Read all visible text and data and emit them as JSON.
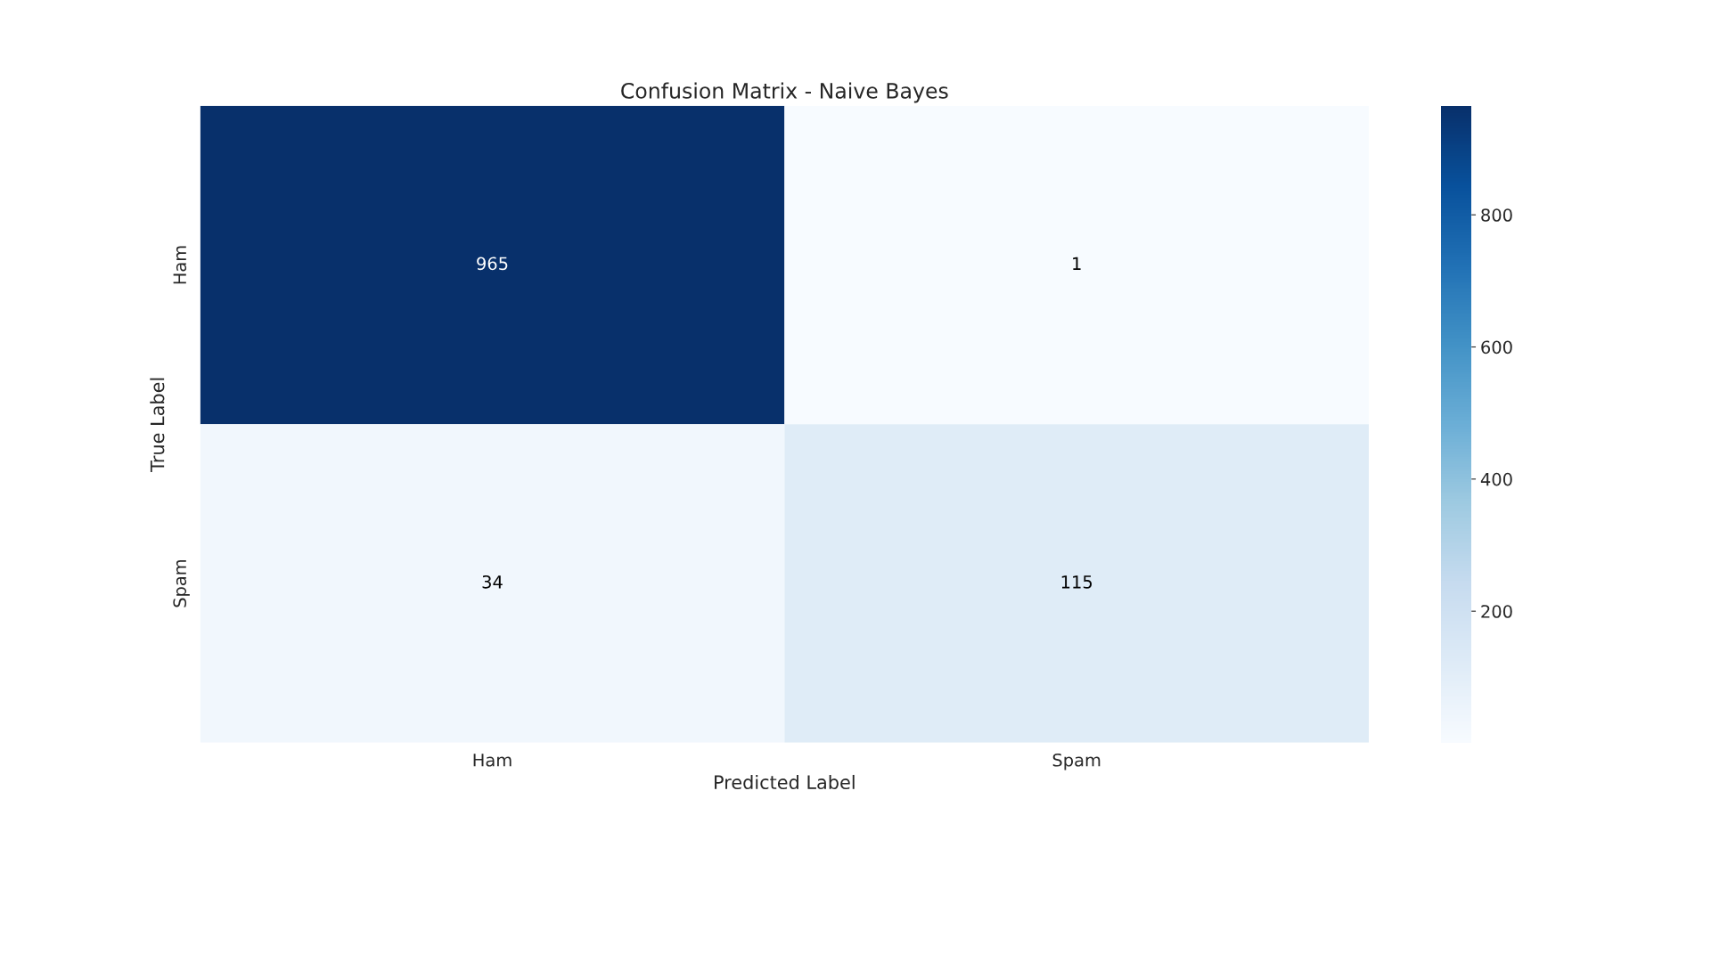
{
  "chart_data": {
    "type": "heatmap",
    "title": "Confusion Matrix - Naive Bayes",
    "xlabel": "Predicted Label",
    "ylabel": "True Label",
    "categories": [
      "Ham",
      "Spam"
    ],
    "y_categories": [
      "Ham",
      "Spam"
    ],
    "cells": [
      [
        965,
        1
      ],
      [
        34,
        115
      ]
    ],
    "data_labels": true,
    "clim": [
      1,
      965
    ],
    "cticks": [
      200,
      400,
      600,
      800
    ]
  }
}
